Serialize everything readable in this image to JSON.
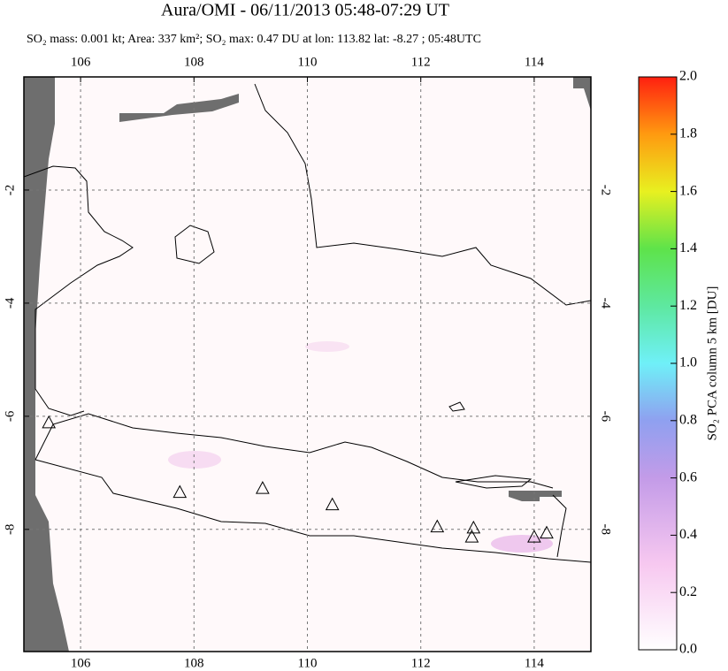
{
  "chart_data": {
    "type": "map",
    "title": "Aura/OMI - 06/11/2013 05:48-07:29 UT",
    "subtitle": "SO₂ mass: 0.001 kt; Area: 337 km²; SO₂ max: 0.47 DU at lon: 113.82 lat: -8.27 ; 05:48UTC",
    "xlim": [
      105,
      115
    ],
    "ylim": [
      0,
      -10.16
    ],
    "xticks": [
      106,
      108,
      110,
      112,
      114
    ],
    "yticks": [
      -2,
      -4,
      -6,
      -8
    ],
    "grid": true,
    "volcanoes": {
      "lon": [
        105.44,
        107.75,
        109.21,
        110.44,
        112.29,
        112.93,
        112.9,
        114.0,
        114.22
      ],
      "lat": [
        -6.11,
        -7.34,
        -7.27,
        -7.56,
        -7.95,
        -7.97,
        -8.13,
        -8.13,
        -8.06
      ]
    },
    "colorbar": {
      "label": "SO₂ PCA column 5 km [DU]",
      "lim": [
        0,
        2
      ],
      "ticks": [
        {
          "value": 0,
          "label": "0.0"
        },
        {
          "value": 0.2,
          "label": "0.2"
        },
        {
          "value": 0.4,
          "label": "0.4"
        },
        {
          "value": 0.6,
          "label": "0.6"
        },
        {
          "value": 0.8,
          "label": "0.8"
        },
        {
          "value": 1,
          "label": "1.0"
        },
        {
          "value": 1.2,
          "label": "1.2"
        },
        {
          "value": 1.4,
          "label": "1.4"
        },
        {
          "value": 1.6,
          "label": "1.6"
        },
        {
          "value": 1.8,
          "label": "1.8"
        },
        {
          "value": 2,
          "label": "2.0"
        }
      ]
    }
  }
}
